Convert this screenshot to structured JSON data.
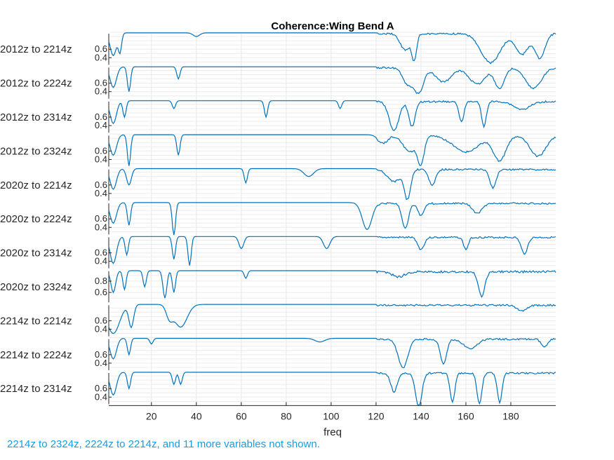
{
  "chart_data": {
    "type": "line",
    "title": "Coherence:Wing Bend A",
    "xlabel": "freq",
    "xlim": [
      1,
      200
    ],
    "xticks": [
      20,
      40,
      60,
      80,
      100,
      120,
      140,
      160,
      180
    ],
    "grid": true,
    "line_color": "#0072BD",
    "series": [
      {
        "name": "2012z to 2214z",
        "yticks": [
          "0.4",
          "0.6"
        ],
        "ylim": [
          0.2,
          1.0
        ],
        "dips": [
          [
            3,
            0.45,
            2
          ],
          [
            6,
            0.55,
            1
          ],
          [
            40,
            0.9,
            2
          ],
          [
            133,
            0.6,
            3
          ],
          [
            137,
            0.4,
            1.5
          ],
          [
            171,
            0.3,
            6
          ],
          [
            185,
            0.5,
            4
          ],
          [
            193,
            0.4,
            3
          ]
        ]
      },
      {
        "name": "2012z to 2224z",
        "yticks": [
          "0.4",
          "0.6"
        ],
        "ylim": [
          0.2,
          1.0
        ],
        "dips": [
          [
            3,
            0.5,
            2
          ],
          [
            10,
            0.4,
            1
          ],
          [
            32,
            0.7,
            1
          ],
          [
            134,
            0.6,
            3
          ],
          [
            139,
            0.4,
            3
          ],
          [
            150,
            0.65,
            5
          ],
          [
            165,
            0.6,
            5
          ],
          [
            175,
            0.5,
            3
          ],
          [
            190,
            0.5,
            5
          ]
        ]
      },
      {
        "name": "2012z to 2314z",
        "yticks": [
          "0.4",
          "0.6"
        ],
        "ylim": [
          0.2,
          1.0
        ],
        "dips": [
          [
            3,
            0.45,
            2
          ],
          [
            8,
            0.6,
            1
          ],
          [
            30,
            0.8,
            1
          ],
          [
            71,
            0.6,
            1
          ],
          [
            104,
            0.8,
            1
          ],
          [
            128,
            0.3,
            3
          ],
          [
            136,
            0.4,
            2
          ],
          [
            158,
            0.5,
            1.5
          ],
          [
            168,
            0.4,
            1.5
          ],
          [
            185,
            0.8,
            5
          ]
        ]
      },
      {
        "name": "2012z to 2324z",
        "yticks": [
          "0.4",
          "0.6"
        ],
        "ylim": [
          0.2,
          1.0
        ],
        "dips": [
          [
            3,
            0.5,
            2
          ],
          [
            10,
            0.25,
            1
          ],
          [
            32,
            0.5,
            1
          ],
          [
            123,
            0.8,
            3
          ],
          [
            135,
            0.6,
            4
          ],
          [
            140,
            0.35,
            2
          ],
          [
            160,
            0.6,
            8
          ],
          [
            175,
            0.4,
            4
          ],
          [
            192,
            0.5,
            5
          ]
        ]
      },
      {
        "name": "2020z to 2214z",
        "yticks": [
          "0.4",
          "0.6"
        ],
        "ylim": [
          0.2,
          1.0
        ],
        "dips": [
          [
            3,
            0.5,
            2
          ],
          [
            10,
            0.6,
            1.5
          ],
          [
            62,
            0.65,
            1
          ],
          [
            90,
            0.8,
            3
          ],
          [
            128,
            0.7,
            4
          ],
          [
            134,
            0.3,
            2
          ],
          [
            145,
            0.6,
            2
          ],
          [
            172,
            0.55,
            2
          ]
        ]
      },
      {
        "name": "2020z to 2224z",
        "yticks": [
          "0.4",
          "0.6"
        ],
        "ylim": [
          0.2,
          1.0
        ],
        "dips": [
          [
            3,
            0.5,
            2
          ],
          [
            10,
            0.45,
            1
          ],
          [
            30,
            0.2,
            1
          ],
          [
            116,
            0.35,
            3
          ],
          [
            133,
            0.4,
            2
          ],
          [
            140,
            0.7,
            2
          ],
          [
            165,
            0.75,
            3
          ]
        ]
      },
      {
        "name": "2020z to 2314z",
        "yticks": [
          "0.4",
          "0.6"
        ],
        "ylim": [
          0.2,
          1.0
        ],
        "dips": [
          [
            3,
            0.35,
            2
          ],
          [
            9,
            0.55,
            1
          ],
          [
            30,
            0.45,
            1
          ],
          [
            37,
            0.3,
            1
          ],
          [
            60,
            0.7,
            1.5
          ],
          [
            98,
            0.7,
            2
          ],
          [
            140,
            0.7,
            2
          ],
          [
            160,
            0.7,
            1.5
          ],
          [
            186,
            0.6,
            2
          ]
        ]
      },
      {
        "name": "2020z to 2324z",
        "yticks": [
          "0.6",
          "0.8"
        ],
        "ylim": [
          0.4,
          1.0
        ],
        "dips": [
          [
            3,
            0.6,
            1.5
          ],
          [
            8,
            0.65,
            1
          ],
          [
            17,
            0.7,
            1
          ],
          [
            26,
            0.5,
            1.2
          ],
          [
            30,
            0.6,
            1
          ],
          [
            62,
            0.85,
            1
          ],
          [
            130,
            0.9,
            4
          ],
          [
            167,
            0.55,
            2
          ]
        ]
      },
      {
        "name": "2214z to 2214z",
        "yticks": [
          "0.4",
          "0.6"
        ],
        "ylim": [
          0.2,
          1.0
        ],
        "dips": [
          [
            3,
            0.3,
            4
          ],
          [
            11,
            0.45,
            1.5
          ],
          [
            33,
            0.45,
            4
          ],
          [
            28,
            0.7,
            2
          ],
          [
            185,
            0.85,
            3
          ]
        ]
      },
      {
        "name": "2214z to 2224z",
        "yticks": [
          "0.4",
          "0.6"
        ],
        "ylim": [
          0.2,
          1.0
        ],
        "dips": [
          [
            3,
            0.5,
            2
          ],
          [
            10,
            0.6,
            1
          ],
          [
            20,
            0.85,
            1
          ],
          [
            95,
            0.9,
            3
          ],
          [
            132,
            0.3,
            3
          ],
          [
            150,
            0.4,
            2
          ],
          [
            162,
            0.75,
            4
          ],
          [
            195,
            0.8,
            2
          ]
        ]
      },
      {
        "name": "2214z to 2314z",
        "yticks": [
          "0.4",
          "0.6"
        ],
        "ylim": [
          0.2,
          1.0
        ],
        "dips": [
          [
            3,
            0.45,
            2
          ],
          [
            10,
            0.6,
            1
          ],
          [
            30,
            0.7,
            1
          ],
          [
            33,
            0.7,
            1
          ],
          [
            128,
            0.55,
            2
          ],
          [
            139,
            0.2,
            2
          ],
          [
            154,
            0.3,
            1.5
          ],
          [
            166,
            0.25,
            1.5
          ],
          [
            175,
            0.3,
            1.5
          ]
        ]
      }
    ]
  },
  "footnote": "2214z to 2324z, 2224z to 2214z, and 11 more variables not shown."
}
